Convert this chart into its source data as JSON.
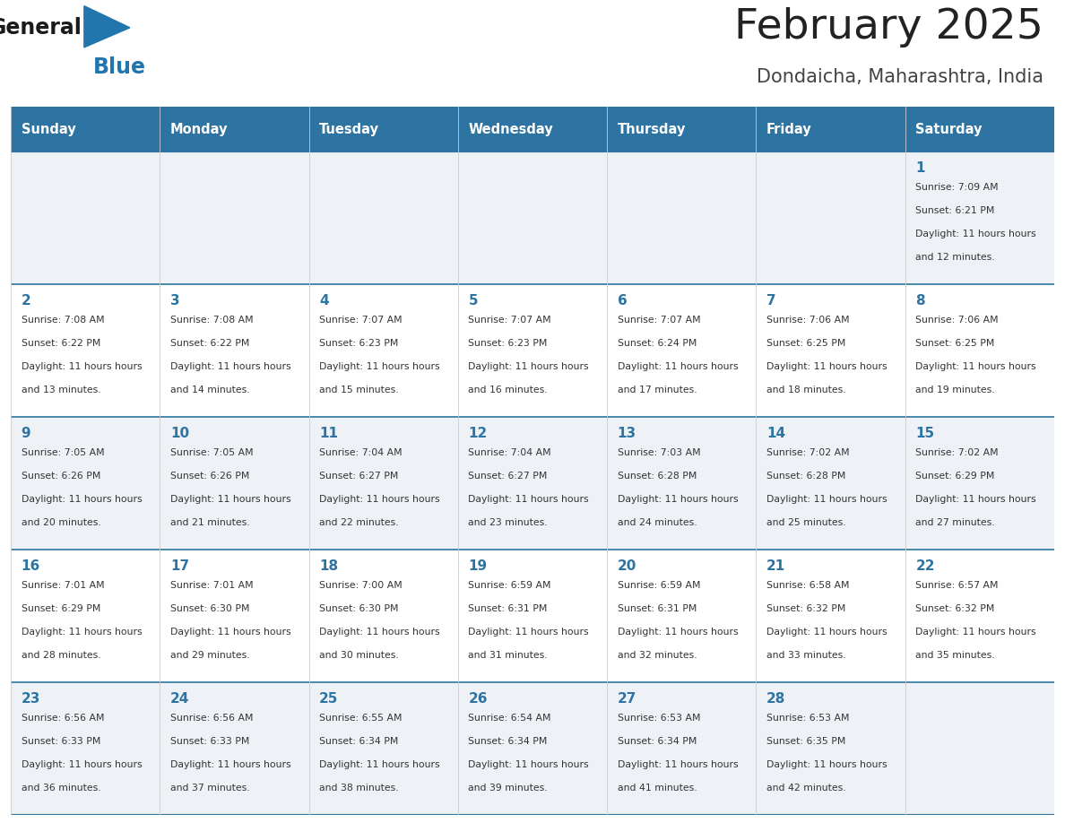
{
  "title": "February 2025",
  "subtitle": "Dondaicha, Maharashtra, India",
  "header_bg": "#2e74a3",
  "header_text_color": "#ffffff",
  "cell_bg_even": "#eef2f6",
  "cell_bg_odd": "#ffffff",
  "border_color": "#2e74a3",
  "day_headers": [
    "Sunday",
    "Monday",
    "Tuesday",
    "Wednesday",
    "Thursday",
    "Friday",
    "Saturday"
  ],
  "title_color": "#222222",
  "subtitle_color": "#444444",
  "day_num_color": "#2e74a3",
  "info_color": "#333333",
  "calendar": [
    [
      {
        "day": "",
        "sunrise": "",
        "sunset": "",
        "daylight": ""
      },
      {
        "day": "",
        "sunrise": "",
        "sunset": "",
        "daylight": ""
      },
      {
        "day": "",
        "sunrise": "",
        "sunset": "",
        "daylight": ""
      },
      {
        "day": "",
        "sunrise": "",
        "sunset": "",
        "daylight": ""
      },
      {
        "day": "",
        "sunrise": "",
        "sunset": "",
        "daylight": ""
      },
      {
        "day": "",
        "sunrise": "",
        "sunset": "",
        "daylight": ""
      },
      {
        "day": "1",
        "sunrise": "7:09 AM",
        "sunset": "6:21 PM",
        "daylight": "11 hours and 12 minutes"
      }
    ],
    [
      {
        "day": "2",
        "sunrise": "7:08 AM",
        "sunset": "6:22 PM",
        "daylight": "11 hours and 13 minutes"
      },
      {
        "day": "3",
        "sunrise": "7:08 AM",
        "sunset": "6:22 PM",
        "daylight": "11 hours and 14 minutes"
      },
      {
        "day": "4",
        "sunrise": "7:07 AM",
        "sunset": "6:23 PM",
        "daylight": "11 hours and 15 minutes"
      },
      {
        "day": "5",
        "sunrise": "7:07 AM",
        "sunset": "6:23 PM",
        "daylight": "11 hours and 16 minutes"
      },
      {
        "day": "6",
        "sunrise": "7:07 AM",
        "sunset": "6:24 PM",
        "daylight": "11 hours and 17 minutes"
      },
      {
        "day": "7",
        "sunrise": "7:06 AM",
        "sunset": "6:25 PM",
        "daylight": "11 hours and 18 minutes"
      },
      {
        "day": "8",
        "sunrise": "7:06 AM",
        "sunset": "6:25 PM",
        "daylight": "11 hours and 19 minutes"
      }
    ],
    [
      {
        "day": "9",
        "sunrise": "7:05 AM",
        "sunset": "6:26 PM",
        "daylight": "11 hours and 20 minutes"
      },
      {
        "day": "10",
        "sunrise": "7:05 AM",
        "sunset": "6:26 PM",
        "daylight": "11 hours and 21 minutes"
      },
      {
        "day": "11",
        "sunrise": "7:04 AM",
        "sunset": "6:27 PM",
        "daylight": "11 hours and 22 minutes"
      },
      {
        "day": "12",
        "sunrise": "7:04 AM",
        "sunset": "6:27 PM",
        "daylight": "11 hours and 23 minutes"
      },
      {
        "day": "13",
        "sunrise": "7:03 AM",
        "sunset": "6:28 PM",
        "daylight": "11 hours and 24 minutes"
      },
      {
        "day": "14",
        "sunrise": "7:02 AM",
        "sunset": "6:28 PM",
        "daylight": "11 hours and 25 minutes"
      },
      {
        "day": "15",
        "sunrise": "7:02 AM",
        "sunset": "6:29 PM",
        "daylight": "11 hours and 27 minutes"
      }
    ],
    [
      {
        "day": "16",
        "sunrise": "7:01 AM",
        "sunset": "6:29 PM",
        "daylight": "11 hours and 28 minutes"
      },
      {
        "day": "17",
        "sunrise": "7:01 AM",
        "sunset": "6:30 PM",
        "daylight": "11 hours and 29 minutes"
      },
      {
        "day": "18",
        "sunrise": "7:00 AM",
        "sunset": "6:30 PM",
        "daylight": "11 hours and 30 minutes"
      },
      {
        "day": "19",
        "sunrise": "6:59 AM",
        "sunset": "6:31 PM",
        "daylight": "11 hours and 31 minutes"
      },
      {
        "day": "20",
        "sunrise": "6:59 AM",
        "sunset": "6:31 PM",
        "daylight": "11 hours and 32 minutes"
      },
      {
        "day": "21",
        "sunrise": "6:58 AM",
        "sunset": "6:32 PM",
        "daylight": "11 hours and 33 minutes"
      },
      {
        "day": "22",
        "sunrise": "6:57 AM",
        "sunset": "6:32 PM",
        "daylight": "11 hours and 35 minutes"
      }
    ],
    [
      {
        "day": "23",
        "sunrise": "6:56 AM",
        "sunset": "6:33 PM",
        "daylight": "11 hours and 36 minutes"
      },
      {
        "day": "24",
        "sunrise": "6:56 AM",
        "sunset": "6:33 PM",
        "daylight": "11 hours and 37 minutes"
      },
      {
        "day": "25",
        "sunrise": "6:55 AM",
        "sunset": "6:34 PM",
        "daylight": "11 hours and 38 minutes"
      },
      {
        "day": "26",
        "sunrise": "6:54 AM",
        "sunset": "6:34 PM",
        "daylight": "11 hours and 39 minutes"
      },
      {
        "day": "27",
        "sunrise": "6:53 AM",
        "sunset": "6:34 PM",
        "daylight": "11 hours and 41 minutes"
      },
      {
        "day": "28",
        "sunrise": "6:53 AM",
        "sunset": "6:35 PM",
        "daylight": "11 hours and 42 minutes"
      },
      {
        "day": "",
        "sunrise": "",
        "sunset": "",
        "daylight": ""
      }
    ]
  ]
}
